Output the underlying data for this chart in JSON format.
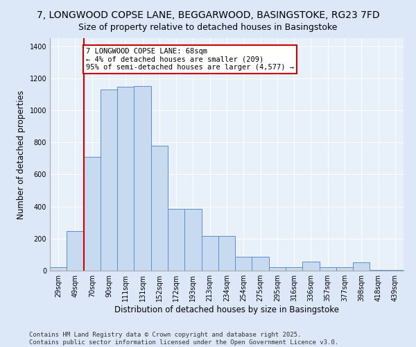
{
  "title": "7, LONGWOOD COPSE LANE, BEGGARWOOD, BASINGSTOKE, RG23 7FD",
  "subtitle": "Size of property relative to detached houses in Basingstoke",
  "xlabel": "Distribution of detached houses by size in Basingstoke",
  "ylabel": "Number of detached properties",
  "categories": [
    "29sqm",
    "49sqm",
    "70sqm",
    "90sqm",
    "111sqm",
    "131sqm",
    "152sqm",
    "172sqm",
    "193sqm",
    "213sqm",
    "234sqm",
    "254sqm",
    "275sqm",
    "295sqm",
    "316sqm",
    "336sqm",
    "357sqm",
    "377sqm",
    "398sqm",
    "418sqm",
    "439sqm"
  ],
  "values": [
    20,
    245,
    710,
    1130,
    1145,
    1150,
    780,
    385,
    385,
    215,
    215,
    85,
    85,
    20,
    20,
    55,
    20,
    20,
    50,
    5,
    3
  ],
  "bar_color": "#c8daf0",
  "bar_edge_color": "#5b8dc8",
  "vline_x": 1.5,
  "vline_color": "#cc0000",
  "annotation_text": "7 LONGWOOD COPSE LANE: 68sqm\n← 4% of detached houses are smaller (209)\n95% of semi-detached houses are larger (4,577) →",
  "annotation_box_color": "#cc0000",
  "annotation_bg": "#ffffff",
  "ylim": [
    0,
    1450
  ],
  "yticks": [
    0,
    200,
    400,
    600,
    800,
    1000,
    1200,
    1400
  ],
  "footnote": "Contains HM Land Registry data © Crown copyright and database right 2025.\nContains public sector information licensed under the Open Government Licence v3.0.",
  "bg_color": "#dce8f8",
  "plot_bg": "#e8f0fa",
  "title_fontsize": 10,
  "axis_fontsize": 8.5,
  "tick_fontsize": 7,
  "footnote_fontsize": 6.5,
  "annotation_fontsize": 7.5
}
